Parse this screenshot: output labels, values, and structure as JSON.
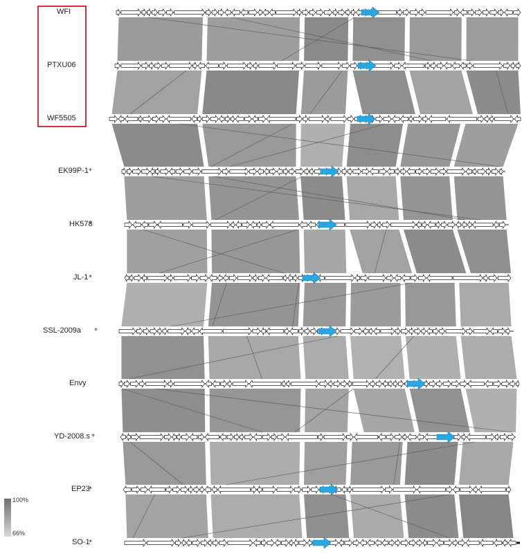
{
  "genomes": [
    {
      "name": "WFI",
      "marked": false,
      "start": 168,
      "end": 752,
      "target": 522,
      "highlighted": true
    },
    {
      "name": "PTXU06",
      "marked": false,
      "start": 166,
      "end": 752,
      "target": 517,
      "highlighted": true
    },
    {
      "name": "WF5505",
      "marked": false,
      "start": 158,
      "end": 752,
      "target": 516,
      "highlighted": true
    },
    {
      "name": "EK99P-1",
      "marked": true,
      "star": "*",
      "start": 176,
      "end": 730,
      "target": 463,
      "highlighted": false
    },
    {
      "name": "HK578",
      "marked": true,
      "star": "*",
      "start": 180,
      "end": 735,
      "target": 460,
      "highlighted": false
    },
    {
      "name": "JL-1",
      "marked": true,
      "star": "*",
      "start": 180,
      "end": 738,
      "target": 437,
      "highlighted": false
    },
    {
      "name": "SSL-2009a",
      "marked": true,
      "star": "*",
      "start": 172,
      "end": 742,
      "target": 460,
      "highlighted": false
    },
    {
      "name": "Envy",
      "marked": false,
      "start": 172,
      "end": 750,
      "target": 588,
      "highlighted": false
    },
    {
      "name": "YD-2008.s",
      "marked": true,
      "star": "*",
      "start": 174,
      "end": 745,
      "target": 631,
      "highlighted": false
    },
    {
      "name": "EP23",
      "marked": true,
      "star": "*",
      "start": 178,
      "end": 738,
      "target": 462,
      "highlighted": false
    },
    {
      "name": "SO-1",
      "marked": true,
      "star": "*",
      "start": 180,
      "end": 745,
      "target": 452,
      "highlighted": false
    }
  ],
  "legend": {
    "max_label": "100%",
    "min_label": "66%"
  },
  "colors": {
    "target_gene": "#29a8e0",
    "highlight_box": "#d0303c",
    "similarity_dark": "#6f6f6f",
    "similarity_light": "#d8d8d8"
  }
}
